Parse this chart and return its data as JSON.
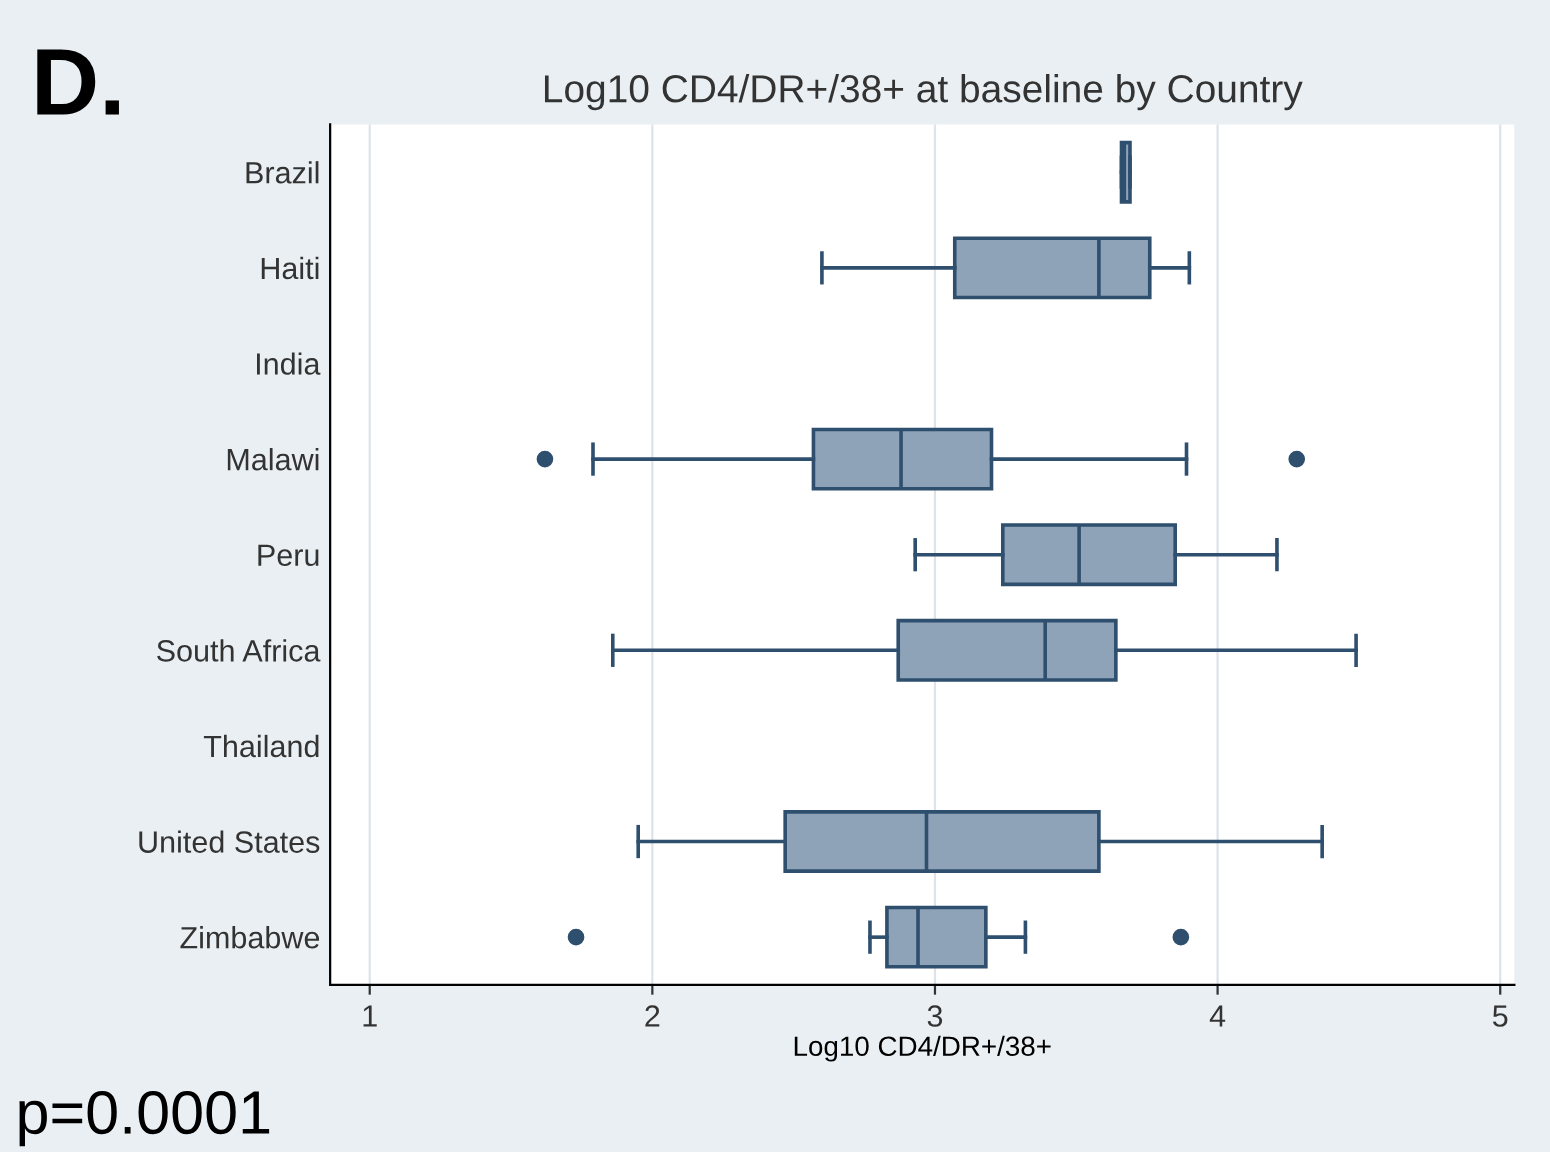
{
  "chart_data": {
    "type": "box",
    "title": "Log10 CD4/DR+/38+ at baseline by Country",
    "xlabel": "Log10 CD4/DR+/38+",
    "orientation": "horizontal",
    "categories": [
      "Brazil",
      "Haiti",
      "India",
      "Malawi",
      "Peru",
      "South Africa",
      "Thailand",
      "United States",
      "Zimbabwe"
    ],
    "boxes": [
      {
        "low": 3.66,
        "q1": 3.66,
        "median": 3.67,
        "q3": 3.69,
        "high": 3.69
      },
      {
        "low": 2.6,
        "q1": 3.07,
        "median": 3.58,
        "q3": 3.76,
        "high": 3.9
      },
      null,
      {
        "low": 1.79,
        "q1": 2.57,
        "median": 2.88,
        "q3": 3.2,
        "high": 3.89,
        "outliers": [
          1.62,
          4.28
        ]
      },
      {
        "low": 2.93,
        "q1": 3.24,
        "median": 3.51,
        "q3": 3.85,
        "high": 4.21
      },
      {
        "low": 1.86,
        "q1": 2.87,
        "median": 3.39,
        "q3": 3.64,
        "high": 4.49
      },
      null,
      {
        "low": 1.95,
        "q1": 2.47,
        "median": 2.97,
        "q3": 3.58,
        "high": 4.37
      },
      {
        "low": 2.77,
        "q1": 2.83,
        "median": 2.94,
        "q3": 3.18,
        "high": 3.32,
        "outliers": [
          1.73,
          3.87
        ]
      }
    ],
    "color": "#8ea2b8",
    "xlim": [
      0.86,
      5.05
    ],
    "xticks": [
      1,
      2,
      3,
      4,
      5
    ],
    "grid": "x",
    "annotations": [
      "D.",
      "p=0.0001"
    ]
  }
}
